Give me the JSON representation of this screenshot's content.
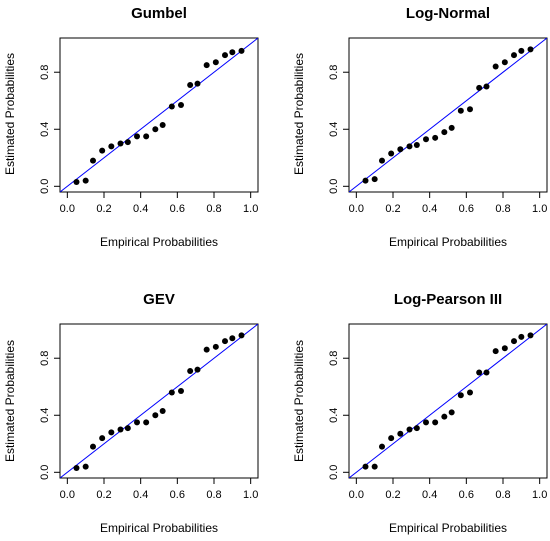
{
  "chart_data": [
    {
      "type": "scatter",
      "title": "Gumbel",
      "xlabel": "Empirical Probabilities",
      "ylabel": "Estimated Probabilities",
      "xlim": [
        0,
        1
      ],
      "ylim": [
        0,
        1
      ],
      "xticks": [
        "0.0",
        "0.2",
        "0.4",
        "0.6",
        "0.8",
        "1.0"
      ],
      "yticks": [
        "0.0",
        "0.4",
        "0.8"
      ],
      "grid": false,
      "reference_line": {
        "from": [
          0,
          0
        ],
        "to": [
          1,
          1
        ],
        "color": "#0000ff"
      },
      "points": {
        "x": [
          0.05,
          0.1,
          0.14,
          0.19,
          0.24,
          0.29,
          0.33,
          0.38,
          0.43,
          0.48,
          0.52,
          0.57,
          0.62,
          0.67,
          0.71,
          0.76,
          0.81,
          0.86,
          0.9,
          0.95
        ],
        "y": [
          0.03,
          0.04,
          0.18,
          0.25,
          0.28,
          0.3,
          0.31,
          0.35,
          0.35,
          0.4,
          0.43,
          0.56,
          0.57,
          0.71,
          0.72,
          0.85,
          0.87,
          0.92,
          0.94,
          0.95
        ]
      }
    },
    {
      "type": "scatter",
      "title": "Log-Normal",
      "xlabel": "Empirical Probabilities",
      "ylabel": "Estimated Probabilities",
      "xlim": [
        0,
        1
      ],
      "ylim": [
        0,
        1
      ],
      "xticks": [
        "0.0",
        "0.2",
        "0.4",
        "0.6",
        "0.8",
        "1.0"
      ],
      "yticks": [
        "0.0",
        "0.4",
        "0.8"
      ],
      "grid": false,
      "reference_line": {
        "from": [
          0,
          0
        ],
        "to": [
          1,
          1
        ],
        "color": "#0000ff"
      },
      "points": {
        "x": [
          0.05,
          0.1,
          0.14,
          0.19,
          0.24,
          0.29,
          0.33,
          0.38,
          0.43,
          0.48,
          0.52,
          0.57,
          0.62,
          0.67,
          0.71,
          0.76,
          0.81,
          0.86,
          0.9,
          0.95
        ],
        "y": [
          0.04,
          0.05,
          0.18,
          0.23,
          0.26,
          0.28,
          0.29,
          0.33,
          0.34,
          0.38,
          0.41,
          0.53,
          0.54,
          0.69,
          0.7,
          0.84,
          0.87,
          0.92,
          0.95,
          0.96
        ]
      }
    },
    {
      "type": "scatter",
      "title": "GEV",
      "xlabel": "Empirical Probabilities",
      "ylabel": "Estimated Probabilities",
      "xlim": [
        0,
        1
      ],
      "ylim": [
        0,
        1
      ],
      "xticks": [
        "0.0",
        "0.2",
        "0.4",
        "0.6",
        "0.8",
        "1.0"
      ],
      "yticks": [
        "0.0",
        "0.4",
        "0.8"
      ],
      "grid": false,
      "reference_line": {
        "from": [
          0,
          0
        ],
        "to": [
          1,
          1
        ],
        "color": "#0000ff"
      },
      "points": {
        "x": [
          0.05,
          0.1,
          0.14,
          0.19,
          0.24,
          0.29,
          0.33,
          0.38,
          0.43,
          0.48,
          0.52,
          0.57,
          0.62,
          0.67,
          0.71,
          0.76,
          0.81,
          0.86,
          0.9,
          0.95
        ],
        "y": [
          0.03,
          0.04,
          0.18,
          0.24,
          0.28,
          0.3,
          0.31,
          0.35,
          0.35,
          0.4,
          0.43,
          0.56,
          0.57,
          0.71,
          0.72,
          0.86,
          0.88,
          0.92,
          0.94,
          0.96
        ]
      }
    },
    {
      "type": "scatter",
      "title": "Log-Pearson III",
      "xlabel": "Empirical Probabilities",
      "ylabel": "Estimated Probabilities",
      "xlim": [
        0,
        1
      ],
      "ylim": [
        0,
        1
      ],
      "xticks": [
        "0.0",
        "0.2",
        "0.4",
        "0.6",
        "0.8",
        "1.0"
      ],
      "yticks": [
        "0.0",
        "0.4",
        "0.8"
      ],
      "grid": false,
      "reference_line": {
        "from": [
          0,
          0
        ],
        "to": [
          1,
          1
        ],
        "color": "#0000ff"
      },
      "points": {
        "x": [
          0.05,
          0.1,
          0.14,
          0.19,
          0.24,
          0.29,
          0.33,
          0.38,
          0.43,
          0.48,
          0.52,
          0.57,
          0.62,
          0.67,
          0.71,
          0.76,
          0.81,
          0.86,
          0.9,
          0.95
        ],
        "y": [
          0.04,
          0.04,
          0.18,
          0.24,
          0.27,
          0.3,
          0.31,
          0.35,
          0.35,
          0.39,
          0.42,
          0.54,
          0.56,
          0.7,
          0.7,
          0.85,
          0.87,
          0.92,
          0.95,
          0.96
        ]
      }
    }
  ]
}
